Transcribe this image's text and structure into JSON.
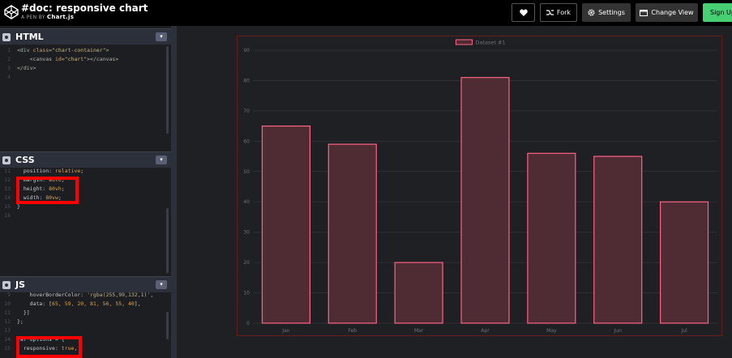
{
  "header": {
    "title": "#doc: responsive chart",
    "byline_prefix": "A PEN BY",
    "author": "Chart.js",
    "buttons": {
      "fork": "Fork",
      "settings": "Settings",
      "change_view": "Change View",
      "signup": "Sign Up"
    }
  },
  "panels": {
    "html": {
      "title": "HTML",
      "lines": [
        {
          "n": "1",
          "segs": [
            [
              "tag",
              "<div "
            ],
            [
              "attr",
              "class"
            ],
            [
              "tag",
              "="
            ],
            [
              "str",
              "\"chart-container\""
            ],
            [
              "tag",
              ">"
            ]
          ]
        },
        {
          "n": "2",
          "segs": [
            [
              "tag",
              "    <canvas "
            ],
            [
              "attr",
              "id"
            ],
            [
              "tag",
              "="
            ],
            [
              "str",
              "\"chart\""
            ],
            [
              "tag",
              "></canvas>"
            ]
          ]
        },
        {
          "n": "3",
          "segs": [
            [
              "tag",
              "</div>"
            ]
          ]
        },
        {
          "n": "4",
          "segs": []
        }
      ]
    },
    "css": {
      "title": "CSS",
      "lines": [
        {
          "n": "11",
          "segs": [
            [
              "prop",
              "  position: "
            ],
            [
              "val",
              "relative"
            ],
            [
              "prop",
              ";"
            ]
          ]
        },
        {
          "n": "12",
          "segs": [
            [
              "prop",
              "  margin: "
            ],
            [
              "val",
              "auto"
            ],
            [
              "prop",
              ";"
            ]
          ]
        },
        {
          "n": "13",
          "segs": [
            [
              "prop",
              "  height: "
            ],
            [
              "val",
              "80vh"
            ],
            [
              "prop",
              ";"
            ]
          ]
        },
        {
          "n": "14",
          "segs": [
            [
              "prop",
              "  width: "
            ],
            [
              "val",
              "80vw"
            ],
            [
              "prop",
              ";"
            ]
          ]
        },
        {
          "n": "15",
          "segs": [
            [
              "prop",
              "}"
            ]
          ]
        },
        {
          "n": "16",
          "segs": []
        }
      ]
    },
    "js": {
      "title": "JS",
      "lines": [
        {
          "n": "9",
          "segs": [
            [
              "prop",
              "    hoverBorderColor: "
            ],
            [
              "str",
              "'rgba(255,99,132,1)'"
            ],
            [
              "prop",
              ","
            ]
          ]
        },
        {
          "n": "10",
          "segs": [
            [
              "prop",
              "    data: ["
            ],
            [
              "val",
              "65, 59, 20, 81, 56, 55, 40"
            ],
            [
              "prop",
              "],"
            ]
          ]
        },
        {
          "n": "11",
          "segs": [
            [
              "prop",
              "  }]"
            ]
          ]
        },
        {
          "n": "12",
          "segs": [
            [
              "prop",
              "};"
            ]
          ]
        },
        {
          "n": "13",
          "segs": []
        },
        {
          "n": "14",
          "segs": [
            [
              "prop",
              "var options = {"
            ]
          ]
        },
        {
          "n": "15",
          "segs": [
            [
              "prop",
              "  responsive: "
            ],
            [
              "val",
              "true"
            ],
            [
              "prop",
              ","
            ]
          ]
        }
      ]
    }
  },
  "chart_data": {
    "type": "bar",
    "categories": [
      "Jan",
      "Feb",
      "Mar",
      "Apr",
      "May",
      "Jun",
      "Jul"
    ],
    "series": [
      {
        "name": "Dataset #1",
        "values": [
          65,
          59,
          20,
          81,
          56,
          55,
          40
        ]
      }
    ],
    "y_ticks": [
      "0",
      "10",
      "20",
      "30",
      "40",
      "50",
      "60",
      "70",
      "80",
      "90"
    ],
    "ylim": [
      0,
      90
    ],
    "legend": "top",
    "grid": true,
    "colors": {
      "bar_fill": "#4f2c34",
      "bar_stroke": "#ff6384",
      "grid": "#2d2f34",
      "tick_text": "#6e7079",
      "legend_text": "#6e7079"
    }
  }
}
